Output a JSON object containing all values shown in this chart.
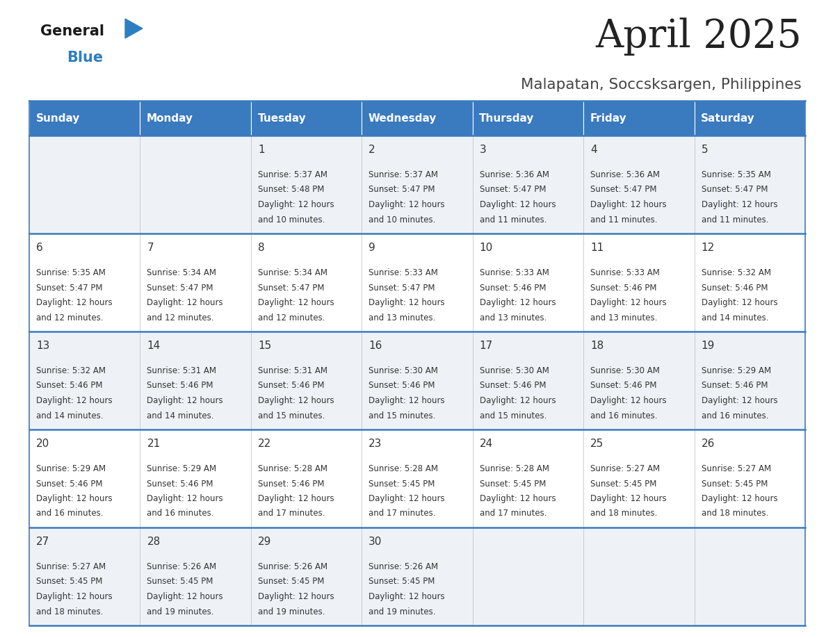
{
  "title": "April 2025",
  "subtitle": "Malapatan, Soccsksargen, Philippines",
  "days_of_week": [
    "Sunday",
    "Monday",
    "Tuesday",
    "Wednesday",
    "Thursday",
    "Friday",
    "Saturday"
  ],
  "header_bg_color": "#3a7abf",
  "header_text_color": "#ffffff",
  "row_bg_even": "#eef2f7",
  "row_bg_odd": "#ffffff",
  "cell_text_color": "#333333",
  "border_color": "#3a7abf",
  "title_color": "#222222",
  "subtitle_color": "#444444",
  "calendar_data": [
    [
      null,
      null,
      {
        "day": 1,
        "sunrise": "5:37 AM",
        "sunset": "5:48 PM",
        "daylight": "and 10 minutes."
      },
      {
        "day": 2,
        "sunrise": "5:37 AM",
        "sunset": "5:47 PM",
        "daylight": "and 10 minutes."
      },
      {
        "day": 3,
        "sunrise": "5:36 AM",
        "sunset": "5:47 PM",
        "daylight": "and 11 minutes."
      },
      {
        "day": 4,
        "sunrise": "5:36 AM",
        "sunset": "5:47 PM",
        "daylight": "and 11 minutes."
      },
      {
        "day": 5,
        "sunrise": "5:35 AM",
        "sunset": "5:47 PM",
        "daylight": "and 11 minutes."
      }
    ],
    [
      {
        "day": 6,
        "sunrise": "5:35 AM",
        "sunset": "5:47 PM",
        "daylight": "and 12 minutes."
      },
      {
        "day": 7,
        "sunrise": "5:34 AM",
        "sunset": "5:47 PM",
        "daylight": "and 12 minutes."
      },
      {
        "day": 8,
        "sunrise": "5:34 AM",
        "sunset": "5:47 PM",
        "daylight": "and 12 minutes."
      },
      {
        "day": 9,
        "sunrise": "5:33 AM",
        "sunset": "5:47 PM",
        "daylight": "and 13 minutes."
      },
      {
        "day": 10,
        "sunrise": "5:33 AM",
        "sunset": "5:46 PM",
        "daylight": "and 13 minutes."
      },
      {
        "day": 11,
        "sunrise": "5:33 AM",
        "sunset": "5:46 PM",
        "daylight": "and 13 minutes."
      },
      {
        "day": 12,
        "sunrise": "5:32 AM",
        "sunset": "5:46 PM",
        "daylight": "and 14 minutes."
      }
    ],
    [
      {
        "day": 13,
        "sunrise": "5:32 AM",
        "sunset": "5:46 PM",
        "daylight": "and 14 minutes."
      },
      {
        "day": 14,
        "sunrise": "5:31 AM",
        "sunset": "5:46 PM",
        "daylight": "and 14 minutes."
      },
      {
        "day": 15,
        "sunrise": "5:31 AM",
        "sunset": "5:46 PM",
        "daylight": "and 15 minutes."
      },
      {
        "day": 16,
        "sunrise": "5:30 AM",
        "sunset": "5:46 PM",
        "daylight": "and 15 minutes."
      },
      {
        "day": 17,
        "sunrise": "5:30 AM",
        "sunset": "5:46 PM",
        "daylight": "and 15 minutes."
      },
      {
        "day": 18,
        "sunrise": "5:30 AM",
        "sunset": "5:46 PM",
        "daylight": "and 16 minutes."
      },
      {
        "day": 19,
        "sunrise": "5:29 AM",
        "sunset": "5:46 PM",
        "daylight": "and 16 minutes."
      }
    ],
    [
      {
        "day": 20,
        "sunrise": "5:29 AM",
        "sunset": "5:46 PM",
        "daylight": "and 16 minutes."
      },
      {
        "day": 21,
        "sunrise": "5:29 AM",
        "sunset": "5:46 PM",
        "daylight": "and 16 minutes."
      },
      {
        "day": 22,
        "sunrise": "5:28 AM",
        "sunset": "5:46 PM",
        "daylight": "and 17 minutes."
      },
      {
        "day": 23,
        "sunrise": "5:28 AM",
        "sunset": "5:45 PM",
        "daylight": "and 17 minutes."
      },
      {
        "day": 24,
        "sunrise": "5:28 AM",
        "sunset": "5:45 PM",
        "daylight": "and 17 minutes."
      },
      {
        "day": 25,
        "sunrise": "5:27 AM",
        "sunset": "5:45 PM",
        "daylight": "and 18 minutes."
      },
      {
        "day": 26,
        "sunrise": "5:27 AM",
        "sunset": "5:45 PM",
        "daylight": "and 18 minutes."
      }
    ],
    [
      {
        "day": 27,
        "sunrise": "5:27 AM",
        "sunset": "5:45 PM",
        "daylight": "and 18 minutes."
      },
      {
        "day": 28,
        "sunrise": "5:26 AM",
        "sunset": "5:45 PM",
        "daylight": "and 19 minutes."
      },
      {
        "day": 29,
        "sunrise": "5:26 AM",
        "sunset": "5:45 PM",
        "daylight": "and 19 minutes."
      },
      {
        "day": 30,
        "sunrise": "5:26 AM",
        "sunset": "5:45 PM",
        "daylight": "and 19 minutes."
      },
      null,
      null,
      null
    ]
  ],
  "logo_text_general": "General",
  "logo_text_blue": "Blue",
  "logo_color_general": "#1a1a1a",
  "logo_color_blue": "#2e7fc1",
  "logo_triangle_color": "#2e7fc1"
}
